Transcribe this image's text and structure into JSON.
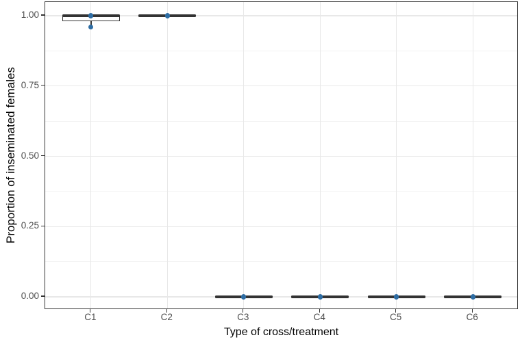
{
  "chart_data": {
    "type": "boxplot",
    "title": "",
    "xlabel": "Type of cross/treatment",
    "ylabel": "Proportion of inseminated females",
    "categories": [
      "C1",
      "C2",
      "C3",
      "C4",
      "C5",
      "C6"
    ],
    "ylim": [
      -0.05,
      1.05
    ],
    "grid": "major horizontal at y ticks, minor horizontal between, vertical at each category",
    "legend_position": "none",
    "y_ticks": [
      {
        "label": "0.00",
        "value": 0.0
      },
      {
        "label": "0.25",
        "value": 0.25
      },
      {
        "label": "0.50",
        "value": 0.5
      },
      {
        "label": "0.75",
        "value": 0.75
      },
      {
        "label": "1.00",
        "value": 1.0
      }
    ],
    "y_minor_ticks": [
      0.125,
      0.375,
      0.625,
      0.875
    ],
    "boxes": [
      {
        "category": "C1",
        "q1": 0.98,
        "median": 1.0,
        "q3": 1.0,
        "whisker_low": 0.96,
        "whisker_high": 1.0,
        "points": [
          1.0,
          0.96
        ]
      },
      {
        "category": "C2",
        "q1": 1.0,
        "median": 1.0,
        "q3": 1.0,
        "whisker_low": 1.0,
        "whisker_high": 1.0,
        "points": [
          1.0
        ]
      },
      {
        "category": "C3",
        "q1": 0.0,
        "median": 0.0,
        "q3": 0.0,
        "whisker_low": 0.0,
        "whisker_high": 0.0,
        "points": [
          0.0
        ]
      },
      {
        "category": "C4",
        "q1": 0.0,
        "median": 0.0,
        "q3": 0.0,
        "whisker_low": 0.0,
        "whisker_high": 0.0,
        "points": [
          0.0
        ]
      },
      {
        "category": "C5",
        "q1": 0.0,
        "median": 0.0,
        "q3": 0.0,
        "whisker_low": 0.0,
        "whisker_high": 0.0,
        "points": [
          0.0
        ]
      },
      {
        "category": "C6",
        "q1": 0.0,
        "median": 0.0,
        "q3": 0.0,
        "whisker_low": 0.0,
        "whisker_high": 0.0,
        "points": [
          0.0
        ]
      }
    ],
    "colors": {
      "box_outline": "#333333",
      "point": "#2e6da4",
      "grid_major": "#e8e8e8",
      "grid_minor": "#f2f2f2",
      "panel_border": "#333333",
      "tick_label": "#4d4d4d",
      "axis_title": "#000000",
      "background": "#ffffff"
    }
  }
}
